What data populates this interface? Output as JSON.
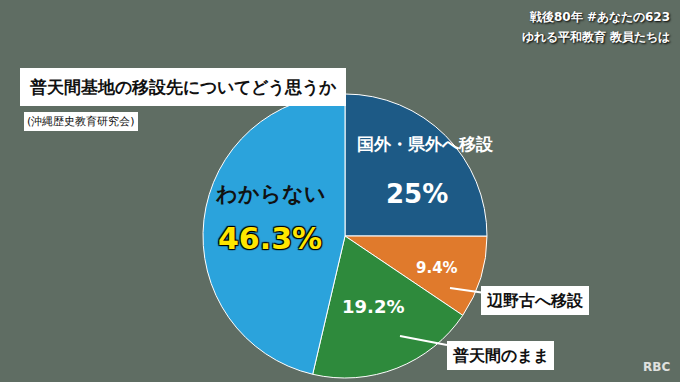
{
  "chart_data": {
    "type": "pie",
    "title": "普天間基地の移設先についてどう思うか",
    "subtitle": "(沖縄歴史教育研究会)",
    "categories": [
      "国外・県外へ移設",
      "辺野古へ移設",
      "普天間のまま",
      "わからない"
    ],
    "values": [
      25,
      9.4,
      19.2,
      46.3
    ],
    "value_labels": [
      "25%",
      "9.4%",
      "19.2%",
      "46.3%"
    ],
    "colors": [
      "#1d5a86",
      "#e07a2c",
      "#2e8a3c",
      "#2ba3dc"
    ],
    "data_labels": true,
    "annotations": [
      "戦後80年 #あなたの623",
      "ゆれる平和教育 教員たちは",
      "RBC"
    ]
  }
}
